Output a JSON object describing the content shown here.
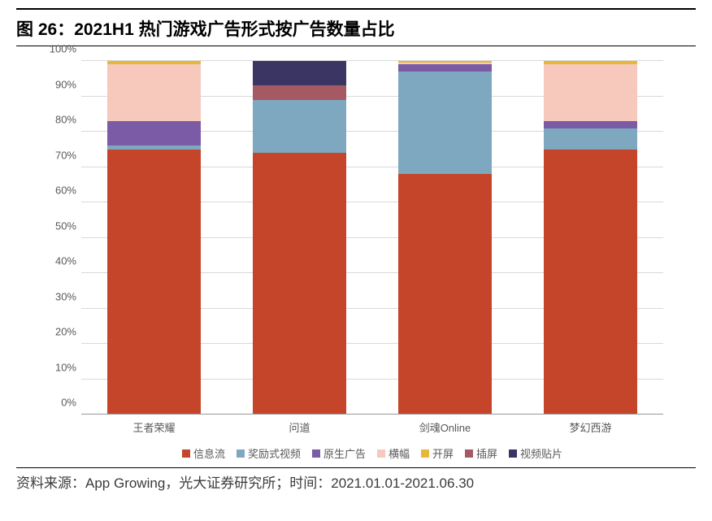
{
  "title": "图 26：2021H1 热门游戏广告形式按广告数量占比",
  "source": "资料来源：App Growing，光大证券研究所；时间：2021.01.01-2021.06.30",
  "chart": {
    "type": "stacked-bar-100",
    "background_color": "#ffffff",
    "grid_color": "#d9d9d9",
    "axis_color": "#999999",
    "text_color": "#595959",
    "title_fontsize": 21,
    "label_fontsize": 13,
    "ylim": [
      0,
      100
    ],
    "ytick_step": 10,
    "ytick_suffix": "%",
    "bar_width_pct": 16,
    "categories": [
      "王者荣耀",
      "问道",
      "剑魂Online",
      "梦幻西游"
    ],
    "series": [
      {
        "key": "信息流",
        "color": "#c4452a"
      },
      {
        "key": "奖励式视频",
        "color": "#7ea8bf"
      },
      {
        "key": "原生广告",
        "color": "#7b5ba6"
      },
      {
        "key": "横幅",
        "color": "#f6c9bc"
      },
      {
        "key": "开屏",
        "color": "#e6b73b"
      },
      {
        "key": "插屏",
        "color": "#a55a63"
      },
      {
        "key": "视频贴片",
        "color": "#3b3564"
      }
    ],
    "values": [
      {
        "信息流": 75,
        "奖励式视频": 1,
        "原生广告": 7,
        "横幅": 16,
        "开屏": 1,
        "插屏": 0,
        "视频贴片": 0
      },
      {
        "信息流": 74,
        "奖励式视频": 15,
        "原生广告": 0,
        "横幅": 0,
        "开屏": 0,
        "插屏": 4,
        "视频贴片": 7
      },
      {
        "信息流": 68,
        "奖励式视频": 29,
        "原生广告": 2,
        "横幅": 0.5,
        "开屏": 0.5,
        "插屏": 0,
        "视频贴片": 0
      },
      {
        "信息流": 75,
        "奖励式视频": 6,
        "原生广告": 2,
        "横幅": 16,
        "开屏": 1,
        "插屏": 0,
        "视频贴片": 0
      }
    ]
  }
}
